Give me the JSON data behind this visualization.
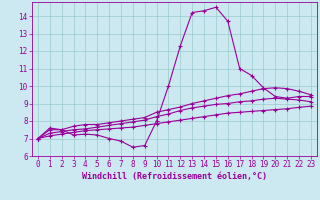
{
  "xlabel": "Windchill (Refroidissement éolien,°C)",
  "bg_color": "#cce8f0",
  "line_color": "#990099",
  "grid_color": "#99cccc",
  "xlim": [
    -0.5,
    23.5
  ],
  "ylim": [
    6,
    14.8
  ],
  "xticks": [
    0,
    1,
    2,
    3,
    4,
    5,
    6,
    7,
    8,
    9,
    10,
    11,
    12,
    13,
    14,
    15,
    16,
    17,
    18,
    19,
    20,
    21,
    22,
    23
  ],
  "yticks": [
    6,
    7,
    8,
    9,
    10,
    11,
    12,
    13,
    14
  ],
  "curves": [
    [
      7.0,
      7.6,
      7.5,
      7.2,
      7.25,
      7.2,
      7.0,
      6.85,
      6.5,
      6.6,
      8.0,
      10.0,
      12.3,
      14.2,
      14.3,
      14.5,
      13.7,
      11.0,
      10.6,
      9.9,
      9.4,
      9.3,
      9.4,
      9.4
    ],
    [
      7.0,
      7.5,
      7.5,
      7.7,
      7.8,
      7.8,
      7.9,
      8.0,
      8.1,
      8.2,
      8.5,
      8.65,
      8.8,
      9.0,
      9.15,
      9.3,
      9.45,
      9.55,
      9.7,
      9.85,
      9.9,
      9.85,
      9.7,
      9.5
    ],
    [
      7.0,
      7.3,
      7.4,
      7.5,
      7.55,
      7.65,
      7.75,
      7.85,
      7.95,
      8.05,
      8.25,
      8.4,
      8.6,
      8.75,
      8.85,
      8.95,
      9.0,
      9.1,
      9.15,
      9.25,
      9.3,
      9.25,
      9.2,
      9.1
    ],
    [
      7.0,
      7.15,
      7.25,
      7.35,
      7.45,
      7.5,
      7.55,
      7.6,
      7.65,
      7.75,
      7.85,
      7.95,
      8.05,
      8.15,
      8.25,
      8.35,
      8.45,
      8.5,
      8.55,
      8.6,
      8.65,
      8.7,
      8.78,
      8.85
    ]
  ],
  "tick_fontsize": 5.5,
  "label_fontsize": 6.0,
  "linewidth": 0.8,
  "markersize": 2.5
}
